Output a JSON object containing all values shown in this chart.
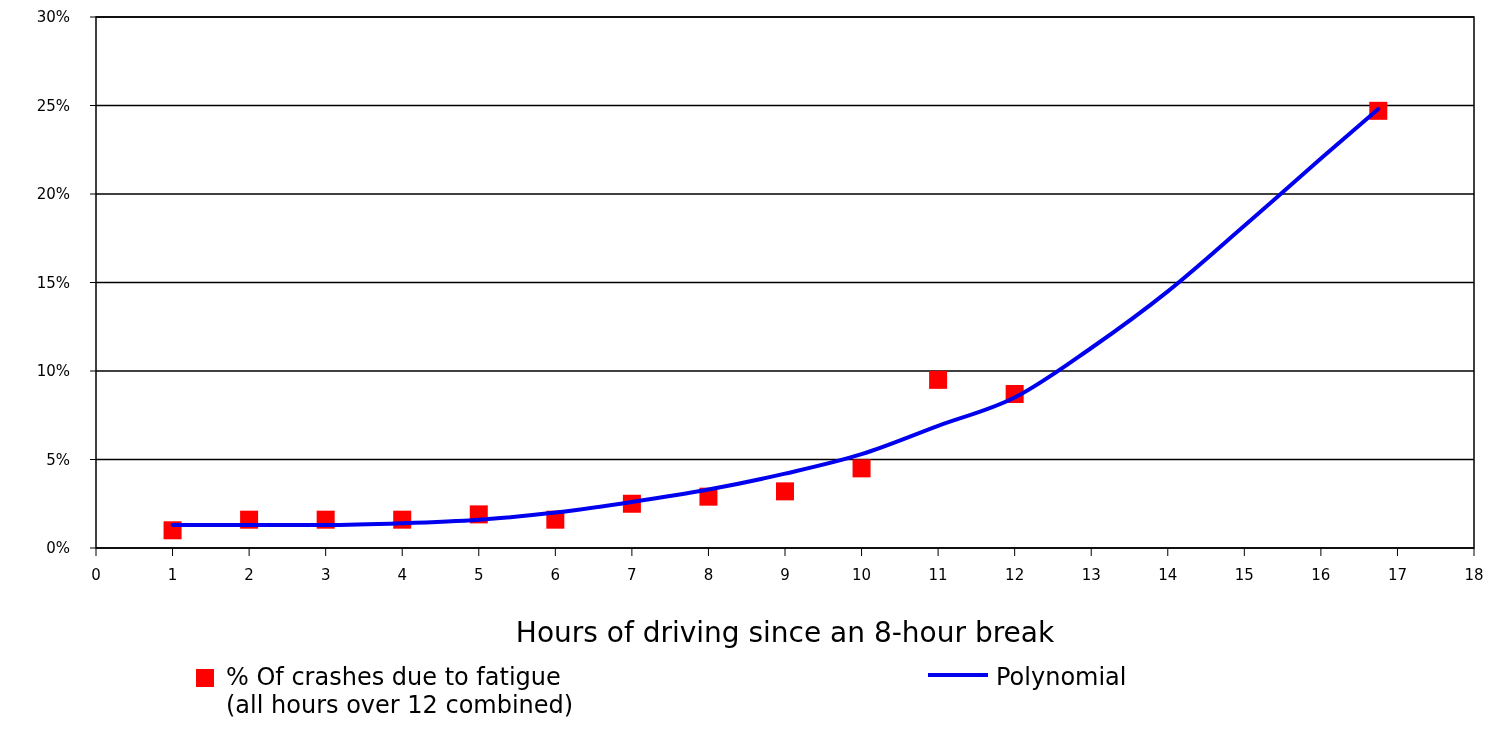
{
  "chart_data": {
    "type": "scatter",
    "xlabel": "Hours of driving since an 8-hour break",
    "xlim": [
      0,
      18
    ],
    "xticks": [
      0,
      1,
      2,
      3,
      4,
      5,
      6,
      7,
      8,
      9,
      10,
      11,
      12,
      13,
      14,
      15,
      16,
      17,
      18
    ],
    "ylim": [
      0,
      30
    ],
    "yticks": [
      {
        "value": 0,
        "label": "0%"
      },
      {
        "value": 5,
        "label": "5%"
      },
      {
        "value": 10,
        "label": "10%"
      },
      {
        "value": 15,
        "label": "15%"
      },
      {
        "value": 20,
        "label": "20%"
      },
      {
        "value": 25,
        "label": "25%"
      },
      {
        "value": 30,
        "label": "30%"
      }
    ],
    "grid": "y",
    "legend": "bottom",
    "series": [
      {
        "name": "% Of crashes due to fatigue\n(all hours over 12 combined)",
        "marker": "square",
        "color": "#ff0000",
        "x": [
          1,
          2,
          3,
          4,
          5,
          6,
          7,
          8,
          9,
          10,
          11,
          12,
          16.75
        ],
        "values": [
          1.0,
          1.6,
          1.6,
          1.6,
          1.9,
          1.6,
          2.5,
          2.9,
          3.2,
          4.5,
          9.5,
          8.7,
          24.7
        ]
      },
      {
        "name": "Polynomial",
        "type": "line",
        "line_style": "solid",
        "color": "#0000ee",
        "x": [
          1,
          2,
          3,
          4,
          5,
          6,
          7,
          8,
          9,
          10,
          11,
          12,
          13,
          14,
          15,
          16,
          16.75
        ],
        "values": [
          1.3,
          1.3,
          1.3,
          1.4,
          1.6,
          2.0,
          2.6,
          3.3,
          4.2,
          5.3,
          6.9,
          8.5,
          11.3,
          14.5,
          18.2,
          22.0,
          24.8
        ]
      }
    ]
  }
}
